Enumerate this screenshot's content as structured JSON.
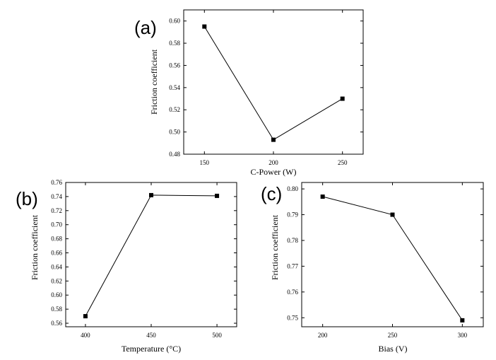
{
  "chart_data": [
    {
      "type": "line",
      "panel_label": "(a)",
      "xlabel": "C-Power (W)",
      "ylabel": "Friction coefficient",
      "x": [
        150,
        200,
        250
      ],
      "y": [
        0.595,
        0.493,
        0.53
      ],
      "xlim": [
        135,
        265
      ],
      "ylim": [
        0.48,
        0.61
      ],
      "xticks": [
        "150",
        "200",
        "250"
      ],
      "yticks": [
        "0.48",
        "0.50",
        "0.52",
        "0.54",
        "0.56",
        "0.58",
        "0.60"
      ],
      "marker": "square",
      "line_color": "#000000"
    },
    {
      "type": "line",
      "panel_label": "(b)",
      "xlabel": "Temperature (°C)",
      "ylabel": "Friction coefficient",
      "x": [
        400,
        450,
        500
      ],
      "y": [
        0.57,
        0.742,
        0.741
      ],
      "xlim": [
        385,
        515
      ],
      "ylim": [
        0.555,
        0.76
      ],
      "xticks": [
        "400",
        "450",
        "500"
      ],
      "yticks": [
        "0.56",
        "0.58",
        "0.60",
        "0.62",
        "0.64",
        "0.66",
        "0.68",
        "0.70",
        "0.72",
        "0.74",
        "0.76"
      ],
      "marker": "square",
      "line_color": "#000000"
    },
    {
      "type": "line",
      "panel_label": "(c)",
      "xlabel": "Bias (V)",
      "ylabel": "Friction coefficient",
      "x": [
        200,
        250,
        300
      ],
      "y": [
        0.797,
        0.79,
        0.749
      ],
      "xlim": [
        185,
        315
      ],
      "ylim": [
        0.7465,
        0.8025
      ],
      "xticks": [
        "200",
        "250",
        "300"
      ],
      "yticks": [
        "0.75",
        "0.76",
        "0.77",
        "0.78",
        "0.79",
        "0.80"
      ],
      "marker": "square",
      "line_color": "#000000"
    }
  ]
}
